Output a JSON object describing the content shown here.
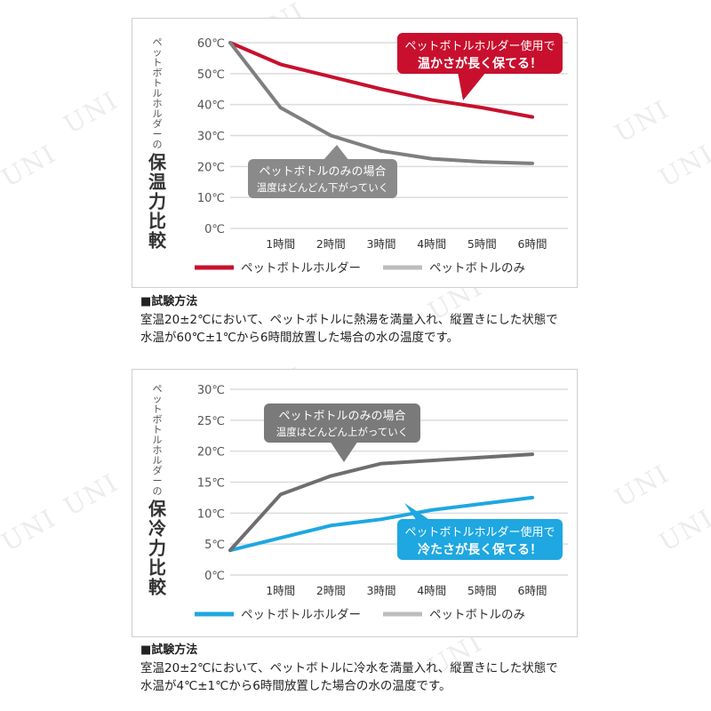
{
  "watermark": "UNI",
  "chart_data": [
    {
      "type": "line",
      "ylabel_small": "ペットボトルホルダーの",
      "ylabel_large": "保温力比較",
      "categories": [
        "",
        "1時間",
        "2時間",
        "3時間",
        "4時間",
        "5時間",
        "6時間"
      ],
      "yticks": [
        "0℃",
        "10℃",
        "20℃",
        "30℃",
        "40℃",
        "50℃",
        "60℃"
      ],
      "ylim": [
        0,
        60
      ],
      "grid": true,
      "series": [
        {
          "name": "ペットボトルホルダー",
          "color": "#c8102e",
          "values": [
            60,
            53,
            49,
            45,
            41.5,
            39,
            36
          ]
        },
        {
          "name": "ペットボトルのみ",
          "color": "#7f7f7f",
          "values": [
            60,
            39,
            30,
            25,
            22.5,
            21.5,
            21
          ]
        }
      ],
      "legend": [
        {
          "label": "ペットボトルホルダー",
          "color": "#c8102e"
        },
        {
          "label": "ペットボトルのみ",
          "color": "#bdbdbd"
        }
      ],
      "callouts": [
        {
          "line1": "ペットボトルホルダー使用で",
          "line2": "温かさが長く保てる！",
          "color": "#c8102e"
        },
        {
          "line1": "ペットボトルのみの場合",
          "line2": "温度はどんどん下がっていく",
          "color": "#8a8a8a"
        }
      ]
    },
    {
      "type": "line",
      "ylabel_small": "ペットボトルホルダーの",
      "ylabel_large": "保冷力比較",
      "categories": [
        "",
        "1時間",
        "2時間",
        "3時間",
        "4時間",
        "5時間",
        "6時間"
      ],
      "yticks": [
        "0℃",
        "5℃",
        "10℃",
        "15℃",
        "20℃",
        "25℃",
        "30℃"
      ],
      "ylim": [
        0,
        30
      ],
      "grid": true,
      "series": [
        {
          "name": "ペットボトルホルダー",
          "color": "#1ea7e1",
          "values": [
            4,
            6,
            8,
            9,
            10.5,
            11.5,
            12.5
          ]
        },
        {
          "name": "ペットボトルのみ",
          "color": "#6e6e6e",
          "values": [
            4,
            13,
            16,
            18,
            18.5,
            19,
            19.5
          ]
        }
      ],
      "legend": [
        {
          "label": "ペットボトルホルダー",
          "color": "#1ea7e1"
        },
        {
          "label": "ペットボトルのみ",
          "color": "#bdbdbd"
        }
      ],
      "callouts": [
        {
          "line1": "ペットボトルのみの場合",
          "line2": "温度はどんどん上がっていく",
          "color": "#7a7a7a"
        },
        {
          "line1": "ペットボトルホルダー使用で",
          "line2": "冷たさが長く保てる！",
          "color": "#1ea7e1"
        }
      ]
    }
  ],
  "method1": {
    "title": "■試験方法",
    "line1": "室温20±2℃において、ペットボトルに熱湯を満量入れ、縦置きにした状態で",
    "line2": "水温が60℃±1℃から6時間放置した場合の水の温度です。"
  },
  "method2": {
    "title": "■試験方法",
    "line1": "室温20±2℃において、ペットボトルに冷水を満量入れ、縦置きにした状態で",
    "line2": "水温が4℃±1℃から6時間放置した場合の水の温度です。"
  }
}
